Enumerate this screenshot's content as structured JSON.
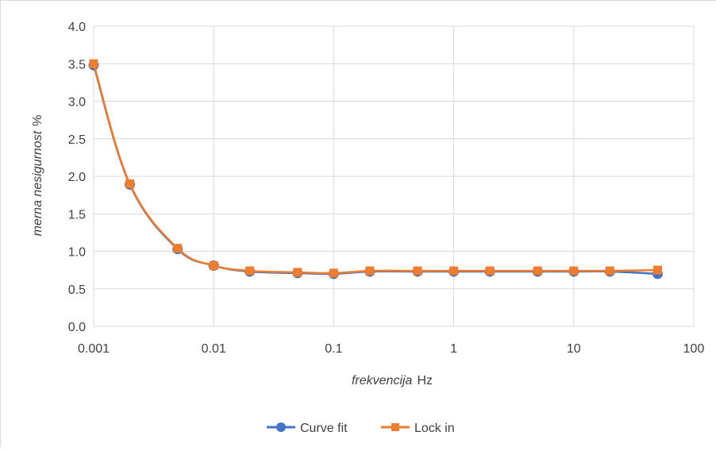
{
  "chart_data": {
    "type": "line",
    "x_scale": "log",
    "x": [
      0.001,
      0.002,
      0.005,
      0.01,
      0.02,
      0.05,
      0.1,
      0.2,
      0.5,
      1,
      2,
      5,
      10,
      20,
      50
    ],
    "series": [
      {
        "name": "Curve fit",
        "color": "#4472C4",
        "marker": "circle",
        "values": [
          3.48,
          1.89,
          1.03,
          0.81,
          0.73,
          0.71,
          0.7,
          0.73,
          0.73,
          0.73,
          0.73,
          0.73,
          0.73,
          0.73,
          0.7
        ]
      },
      {
        "name": "Lock in",
        "color": "#ED7D31",
        "marker": "square",
        "values": [
          3.5,
          1.9,
          1.04,
          0.81,
          0.74,
          0.72,
          0.71,
          0.74,
          0.74,
          0.74,
          0.74,
          0.74,
          0.74,
          0.74,
          0.75
        ]
      }
    ],
    "xlabel": {
      "var": "frekvencija",
      "unit": "Hz"
    },
    "ylabel": {
      "var": "merna nesigurnost",
      "unit": "%"
    },
    "xlim": [
      0.001,
      100
    ],
    "ylim": [
      0,
      4
    ],
    "x_ticks": [
      0.001,
      0.01,
      0.1,
      1,
      10,
      100
    ],
    "x_tick_labels": [
      "0.001",
      "0.01",
      "0.1",
      "1",
      "10",
      "100"
    ],
    "y_ticks": [
      0,
      0.5,
      1,
      1.5,
      2,
      2.5,
      3,
      3.5,
      4
    ],
    "y_tick_labels": [
      "0.0",
      "0.5",
      "1.0",
      "1.5",
      "2.0",
      "2.5",
      "3.0",
      "3.5",
      "4.0"
    ],
    "grid": true,
    "legend": "bottom",
    "smooth": true,
    "colors": {
      "grid": "#D9D9D9",
      "text": "#404040"
    }
  }
}
